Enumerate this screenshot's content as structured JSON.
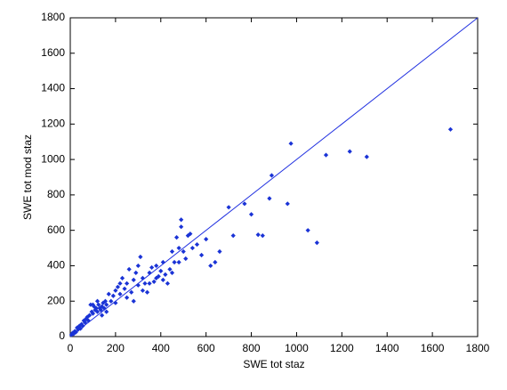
{
  "chart_data": {
    "type": "scatter",
    "xlabel": "SWE tot staz",
    "ylabel": "SWE tot mod staz",
    "xlim": [
      0,
      1800
    ],
    "ylim": [
      0,
      1800
    ],
    "xticks": [
      0,
      200,
      400,
      600,
      800,
      1000,
      1200,
      1400,
      1600,
      1800
    ],
    "yticks": [
      0,
      200,
      400,
      600,
      800,
      1000,
      1200,
      1400,
      1600,
      1800
    ],
    "color": "#1a33d6",
    "x": [
      5,
      10,
      15,
      20,
      25,
      30,
      35,
      40,
      45,
      50,
      55,
      60,
      65,
      70,
      75,
      80,
      85,
      90,
      95,
      100,
      105,
      110,
      115,
      120,
      125,
      130,
      135,
      140,
      145,
      150,
      155,
      160,
      170,
      180,
      190,
      200,
      210,
      220,
      230,
      240,
      250,
      260,
      270,
      280,
      290,
      300,
      310,
      320,
      330,
      340,
      350,
      360,
      370,
      380,
      390,
      400,
      410,
      420,
      430,
      440,
      450,
      460,
      470,
      480,
      490,
      500,
      520,
      540,
      560,
      580,
      600,
      620,
      640,
      660,
      700,
      720,
      770,
      800,
      830,
      850,
      880,
      890,
      960,
      975,
      1050,
      1090,
      1130,
      1235,
      1310,
      1680,
      100,
      120,
      140,
      160,
      200,
      220,
      250,
      280,
      300,
      320,
      350,
      380,
      410,
      450,
      480,
      490,
      510,
      530
    ],
    "y": [
      10,
      20,
      15,
      30,
      25,
      50,
      40,
      60,
      45,
      70,
      60,
      90,
      80,
      100,
      110,
      90,
      120,
      180,
      140,
      130,
      170,
      150,
      160,
      140,
      180,
      160,
      150,
      170,
      190,
      160,
      200,
      180,
      240,
      200,
      230,
      260,
      280,
      240,
      330,
      270,
      300,
      380,
      250,
      320,
      360,
      290,
      450,
      330,
      300,
      250,
      360,
      390,
      310,
      400,
      340,
      370,
      420,
      350,
      300,
      380,
      480,
      420,
      560,
      500,
      660,
      480,
      570,
      500,
      520,
      460,
      550,
      400,
      420,
      480,
      730,
      570,
      750,
      690,
      575,
      570,
      780,
      910,
      750,
      1090,
      600,
      530,
      1025,
      1045,
      1015,
      1170,
      180,
      200,
      120,
      140,
      190,
      300,
      220,
      200,
      400,
      260,
      300,
      330,
      320,
      360,
      420,
      620,
      440,
      580
    ],
    "line": {
      "x": [
        0,
        1800
      ],
      "y": [
        0,
        1800
      ],
      "color": "#2030e0"
    }
  }
}
